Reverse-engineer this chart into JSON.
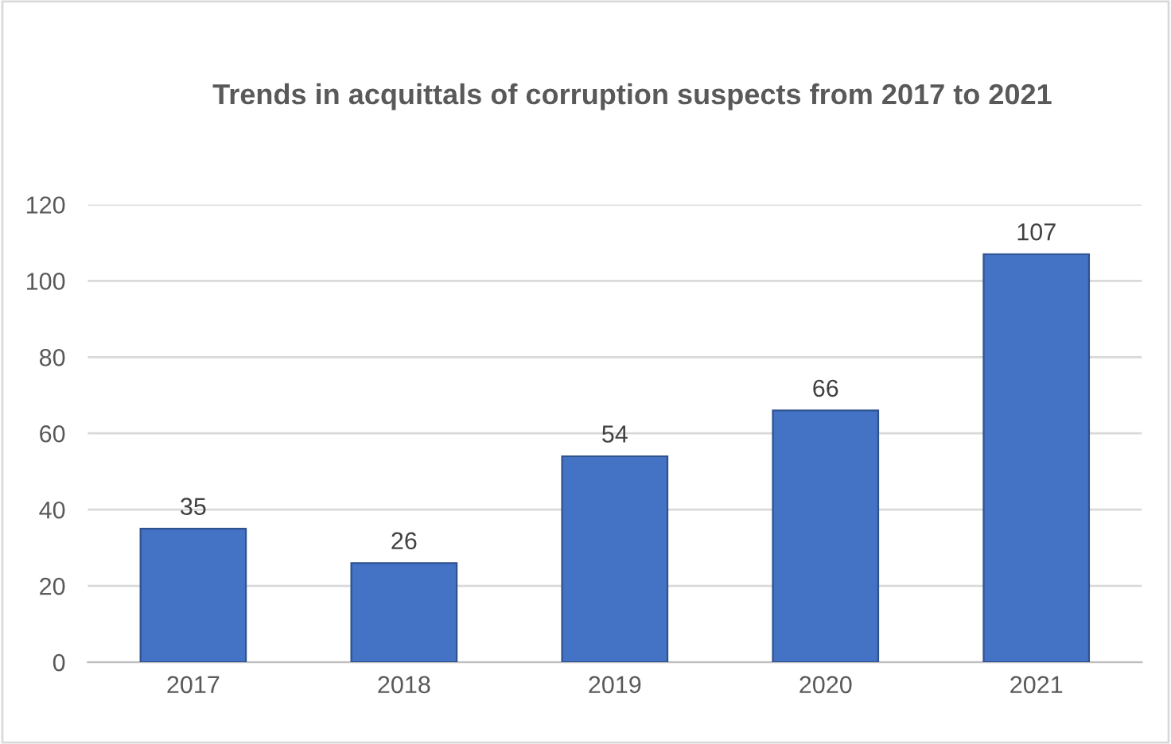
{
  "chart_data": {
    "type": "bar",
    "title": "Trends in acquittals of corruption suspects from 2017 to 2021",
    "categories": [
      "2017",
      "2018",
      "2019",
      "2020",
      "2021"
    ],
    "values": [
      35,
      26,
      54,
      66,
      107
    ],
    "color": "#4472c4",
    "ylim": [
      0,
      120
    ],
    "yticks": [
      0,
      20,
      40,
      60,
      80,
      100,
      120
    ],
    "grid": "y",
    "data_labels": true,
    "legend": false
  }
}
